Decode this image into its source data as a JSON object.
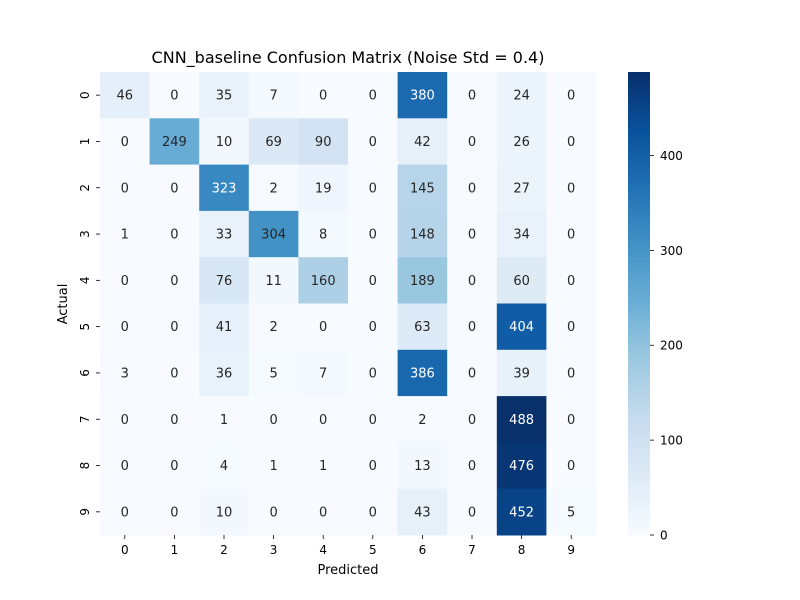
{
  "chart_data": {
    "type": "heatmap",
    "title": "CNN_baseline Confusion Matrix (Noise Std = 0.4)",
    "xlabel": "Predicted",
    "ylabel": "Actual",
    "x_categories": [
      "0",
      "1",
      "2",
      "3",
      "4",
      "5",
      "6",
      "7",
      "8",
      "9"
    ],
    "y_categories": [
      "0",
      "1",
      "2",
      "3",
      "4",
      "5",
      "6",
      "7",
      "8",
      "9"
    ],
    "values": [
      [
        46,
        0,
        35,
        7,
        0,
        0,
        380,
        0,
        24,
        0
      ],
      [
        0,
        249,
        10,
        69,
        90,
        0,
        42,
        0,
        26,
        0
      ],
      [
        0,
        0,
        323,
        2,
        19,
        0,
        145,
        0,
        27,
        0
      ],
      [
        1,
        0,
        33,
        304,
        8,
        0,
        148,
        0,
        34,
        0
      ],
      [
        0,
        0,
        76,
        11,
        160,
        0,
        189,
        0,
        60,
        0
      ],
      [
        0,
        0,
        41,
        2,
        0,
        0,
        63,
        0,
        404,
        0
      ],
      [
        3,
        0,
        36,
        5,
        7,
        0,
        386,
        0,
        39,
        0
      ],
      [
        0,
        0,
        1,
        0,
        0,
        0,
        2,
        0,
        488,
        0
      ],
      [
        0,
        0,
        4,
        1,
        1,
        0,
        13,
        0,
        476,
        0
      ],
      [
        0,
        0,
        10,
        0,
        0,
        0,
        43,
        0,
        452,
        5
      ]
    ],
    "color_scale": {
      "min": 0,
      "max": 488,
      "colormap": "Blues",
      "ticks": [
        0,
        100,
        200,
        300,
        400
      ],
      "tick_labels": [
        "0",
        "100",
        "200",
        "300",
        "400"
      ]
    },
    "annotations": true,
    "grid": false,
    "legend": "colorbar-right"
  }
}
